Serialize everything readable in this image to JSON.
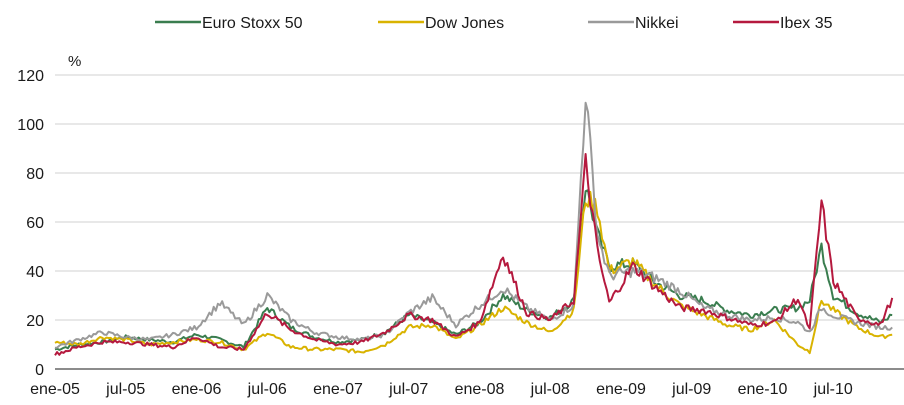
{
  "chart_data": {
    "type": "line",
    "title": "",
    "xlabel": "",
    "ylabel": "%",
    "ylim": [
      0,
      120
    ],
    "y_ticks": [
      0,
      20,
      40,
      60,
      80,
      100,
      120
    ],
    "x_tick_labels": [
      "ene-05",
      "jul-05",
      "ene-06",
      "jul-06",
      "ene-07",
      "jul-07",
      "ene-08",
      "jul-08",
      "ene-09",
      "jul-09",
      "ene-10",
      "jul-10"
    ],
    "x_start": "2005-01",
    "x_end": "2010-12",
    "grid": "horizontal",
    "legend_position": "top",
    "x": [
      "2005-01",
      "2005-03",
      "2005-05",
      "2005-07",
      "2005-09",
      "2005-11",
      "2006-01",
      "2006-03",
      "2006-05",
      "2006-07",
      "2006-09",
      "2006-11",
      "2007-01",
      "2007-03",
      "2007-05",
      "2007-07",
      "2007-09",
      "2007-11",
      "2008-01",
      "2008-03",
      "2008-05",
      "2008-07",
      "2008-09",
      "2008-10",
      "2008-11",
      "2008-12",
      "2009-02",
      "2009-04",
      "2009-06",
      "2009-08",
      "2009-10",
      "2009-12",
      "2010-02",
      "2010-04",
      "2010-05",
      "2010-06",
      "2010-07",
      "2010-09",
      "2010-11",
      "2010-12"
    ],
    "series": [
      {
        "name": "Euro Stoxx 50",
        "color": "#3a7d4f",
        "values": [
          8,
          10,
          11,
          13,
          12,
          11,
          14,
          12,
          9,
          25,
          17,
          13,
          11,
          12,
          15,
          22,
          19,
          14,
          19,
          30,
          24,
          21,
          28,
          75,
          55,
          42,
          43,
          35,
          30,
          28,
          24,
          22,
          24,
          25,
          28,
          50,
          30,
          23,
          19,
          22
        ]
      },
      {
        "name": "Dow Jones",
        "color": "#d9b300",
        "values": [
          11,
          10,
          13,
          12,
          10,
          11,
          12,
          11,
          8,
          15,
          9,
          8,
          8,
          7,
          10,
          17,
          18,
          12,
          18,
          25,
          19,
          15,
          24,
          70,
          66,
          40,
          44,
          34,
          26,
          22,
          18,
          16,
          20,
          10,
          7,
          28,
          24,
          17,
          13,
          14
        ]
      },
      {
        "name": "Nikkei",
        "color": "#9a9a9a",
        "values": [
          9,
          12,
          15,
          13,
          12,
          14,
          17,
          27,
          18,
          30,
          20,
          15,
          13,
          12,
          14,
          23,
          29,
          18,
          26,
          33,
          25,
          20,
          26,
          113,
          55,
          38,
          40,
          37,
          32,
          25,
          22,
          20,
          21,
          19,
          15,
          25,
          22,
          19,
          17,
          17
        ]
      },
      {
        "name": "Ibex 35",
        "color": "#b5193e",
        "values": [
          6,
          9,
          11,
          11,
          10,
          9,
          13,
          9,
          8,
          23,
          16,
          12,
          10,
          11,
          15,
          22,
          20,
          13,
          19,
          47,
          23,
          20,
          28,
          84,
          48,
          27,
          42,
          33,
          25,
          24,
          21,
          18,
          19,
          29,
          16,
          68,
          36,
          21,
          18,
          29
        ]
      }
    ]
  }
}
